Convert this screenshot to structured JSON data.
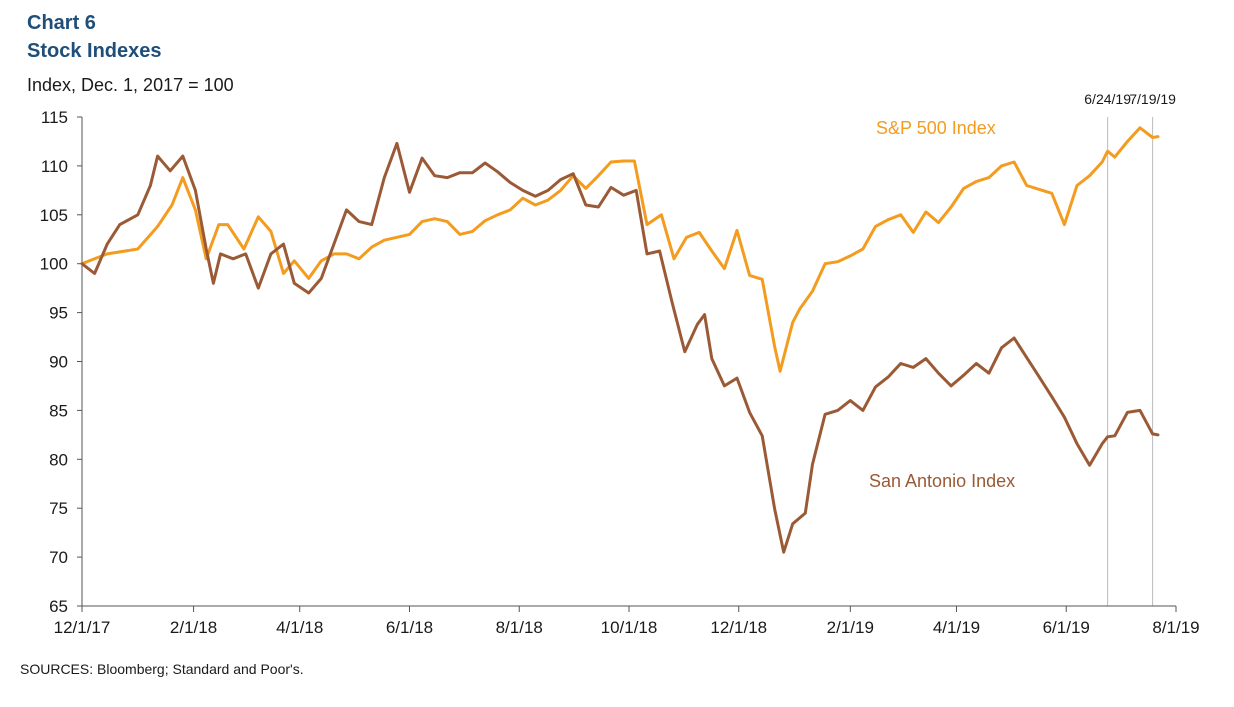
{
  "header": {
    "title": "Chart 6",
    "subtitle": "Stock Indexes",
    "units": "Index, Dec. 1, 2017 = 100"
  },
  "footer": {
    "source": "SOURCES: Bloomberg; Standard and Poor's."
  },
  "colors": {
    "sp500": "#f39c1f",
    "san_antonio": "#9b5a36",
    "axis": "#555555",
    "marker_line": "#bbbbbb"
  },
  "chart_data": {
    "type": "line",
    "x_axis": {
      "type": "date",
      "range": [
        "2017-12-01",
        "2019-08-01"
      ],
      "ticks": [
        "2017-12-01",
        "2018-02-01",
        "2018-04-01",
        "2018-06-01",
        "2018-08-01",
        "2018-10-01",
        "2018-12-01",
        "2019-02-01",
        "2019-04-01",
        "2019-06-01",
        "2019-08-01"
      ],
      "tick_labels": [
        "12/1/17",
        "2/1/18",
        "4/1/18",
        "6/1/18",
        "8/1/18",
        "10/1/18",
        "12/1/18",
        "2/1/19",
        "4/1/19",
        "6/1/19",
        "8/1/19"
      ]
    },
    "y_axis": {
      "range": [
        65,
        115
      ],
      "ticks": [
        65,
        70,
        75,
        80,
        85,
        90,
        95,
        100,
        105,
        110,
        115
      ]
    },
    "grid": false,
    "reference_lines": [
      {
        "date": "2019-06-24",
        "label": "6/24/19"
      },
      {
        "date": "2019-07-19",
        "label": "7/19/19"
      }
    ],
    "series": [
      {
        "name": "S&P 500 Index",
        "color": "#f39c1f",
        "points": [
          [
            "2017-12-01",
            100
          ],
          [
            "2017-12-15",
            101
          ],
          [
            "2018-01-01",
            101.5
          ],
          [
            "2018-01-12",
            103.8
          ],
          [
            "2018-01-20",
            106
          ],
          [
            "2018-01-26",
            108.8
          ],
          [
            "2018-02-02",
            105.5
          ],
          [
            "2018-02-08",
            100.5
          ],
          [
            "2018-02-15",
            104
          ],
          [
            "2018-02-20",
            104
          ],
          [
            "2018-03-01",
            101.5
          ],
          [
            "2018-03-09",
            104.8
          ],
          [
            "2018-03-16",
            103.3
          ],
          [
            "2018-03-23",
            99
          ],
          [
            "2018-03-29",
            100.3
          ],
          [
            "2018-04-06",
            98.5
          ],
          [
            "2018-04-13",
            100.3
          ],
          [
            "2018-04-20",
            101
          ],
          [
            "2018-04-27",
            101
          ],
          [
            "2018-05-04",
            100.5
          ],
          [
            "2018-05-11",
            101.7
          ],
          [
            "2018-05-18",
            102.4
          ],
          [
            "2018-05-25",
            102.7
          ],
          [
            "2018-06-01",
            103
          ],
          [
            "2018-06-08",
            104.3
          ],
          [
            "2018-06-15",
            104.6
          ],
          [
            "2018-06-22",
            104.3
          ],
          [
            "2018-06-29",
            103
          ],
          [
            "2018-07-06",
            103.3
          ],
          [
            "2018-07-13",
            104.4
          ],
          [
            "2018-07-20",
            105
          ],
          [
            "2018-07-27",
            105.5
          ],
          [
            "2018-08-03",
            106.7
          ],
          [
            "2018-08-10",
            106
          ],
          [
            "2018-08-17",
            106.5
          ],
          [
            "2018-08-24",
            107.5
          ],
          [
            "2018-08-31",
            109
          ],
          [
            "2018-09-07",
            107.7
          ],
          [
            "2018-09-14",
            109
          ],
          [
            "2018-09-21",
            110.4
          ],
          [
            "2018-09-28",
            110.5
          ],
          [
            "2018-10-04",
            110.5
          ],
          [
            "2018-10-11",
            104
          ],
          [
            "2018-10-19",
            105
          ],
          [
            "2018-10-26",
            100.5
          ],
          [
            "2018-11-02",
            102.7
          ],
          [
            "2018-11-09",
            103.2
          ],
          [
            "2018-11-16",
            101.3
          ],
          [
            "2018-11-23",
            99.5
          ],
          [
            "2018-11-30",
            103.4
          ],
          [
            "2018-12-07",
            98.8
          ],
          [
            "2018-12-14",
            98.4
          ],
          [
            "2018-12-21",
            91.5
          ],
          [
            "2018-12-24",
            89
          ],
          [
            "2018-12-31",
            94
          ],
          [
            "2019-01-04",
            95.4
          ],
          [
            "2019-01-11",
            97.2
          ],
          [
            "2019-01-18",
            100
          ],
          [
            "2019-01-25",
            100.2
          ],
          [
            "2019-02-01",
            100.8
          ],
          [
            "2019-02-08",
            101.5
          ],
          [
            "2019-02-15",
            103.8
          ],
          [
            "2019-02-22",
            104.5
          ],
          [
            "2019-03-01",
            105
          ],
          [
            "2019-03-08",
            103.2
          ],
          [
            "2019-03-15",
            105.3
          ],
          [
            "2019-03-22",
            104.2
          ],
          [
            "2019-03-29",
            105.8
          ],
          [
            "2019-04-05",
            107.7
          ],
          [
            "2019-04-12",
            108.4
          ],
          [
            "2019-04-19",
            108.8
          ],
          [
            "2019-04-26",
            110
          ],
          [
            "2019-05-03",
            110.4
          ],
          [
            "2019-05-10",
            108
          ],
          [
            "2019-05-17",
            107.6
          ],
          [
            "2019-05-24",
            107.2
          ],
          [
            "2019-05-31",
            104
          ],
          [
            "2019-06-07",
            108
          ],
          [
            "2019-06-14",
            109
          ],
          [
            "2019-06-21",
            110.4
          ],
          [
            "2019-06-24",
            111.5
          ],
          [
            "2019-06-28",
            110.9
          ],
          [
            "2019-07-05",
            112.5
          ],
          [
            "2019-07-12",
            113.9
          ],
          [
            "2019-07-19",
            112.9
          ],
          [
            "2019-07-22",
            113
          ]
        ]
      },
      {
        "name": "San Antonio Index",
        "color": "#9b5a36",
        "points": [
          [
            "2017-12-01",
            100
          ],
          [
            "2017-12-08",
            99
          ],
          [
            "2017-12-15",
            102
          ],
          [
            "2017-12-22",
            104
          ],
          [
            "2018-01-01",
            105
          ],
          [
            "2018-01-08",
            108
          ],
          [
            "2018-01-12",
            111
          ],
          [
            "2018-01-19",
            109.5
          ],
          [
            "2018-01-26",
            111
          ],
          [
            "2018-02-02",
            107.5
          ],
          [
            "2018-02-08",
            101.5
          ],
          [
            "2018-02-12",
            98
          ],
          [
            "2018-02-16",
            101
          ],
          [
            "2018-02-23",
            100.5
          ],
          [
            "2018-03-02",
            101
          ],
          [
            "2018-03-09",
            97.5
          ],
          [
            "2018-03-16",
            101
          ],
          [
            "2018-03-23",
            102
          ],
          [
            "2018-03-29",
            98
          ],
          [
            "2018-04-06",
            97
          ],
          [
            "2018-04-13",
            98.5
          ],
          [
            "2018-04-20",
            102
          ],
          [
            "2018-04-27",
            105.5
          ],
          [
            "2018-05-04",
            104.3
          ],
          [
            "2018-05-11",
            104
          ],
          [
            "2018-05-18",
            108.8
          ],
          [
            "2018-05-25",
            112.3
          ],
          [
            "2018-06-01",
            107.3
          ],
          [
            "2018-06-08",
            110.8
          ],
          [
            "2018-06-15",
            109
          ],
          [
            "2018-06-22",
            108.8
          ],
          [
            "2018-06-29",
            109.3
          ],
          [
            "2018-07-06",
            109.3
          ],
          [
            "2018-07-13",
            110.3
          ],
          [
            "2018-07-20",
            109.4
          ],
          [
            "2018-07-27",
            108.3
          ],
          [
            "2018-08-03",
            107.5
          ],
          [
            "2018-08-10",
            106.9
          ],
          [
            "2018-08-17",
            107.5
          ],
          [
            "2018-08-24",
            108.6
          ],
          [
            "2018-08-31",
            109.2
          ],
          [
            "2018-09-07",
            106
          ],
          [
            "2018-09-14",
            105.8
          ],
          [
            "2018-09-21",
            107.8
          ],
          [
            "2018-09-28",
            107
          ],
          [
            "2018-10-05",
            107.5
          ],
          [
            "2018-10-11",
            101
          ],
          [
            "2018-10-18",
            101.3
          ],
          [
            "2018-10-25",
            96
          ],
          [
            "2018-11-01",
            91
          ],
          [
            "2018-11-08",
            93.8
          ],
          [
            "2018-11-12",
            94.8
          ],
          [
            "2018-11-16",
            90.3
          ],
          [
            "2018-11-23",
            87.5
          ],
          [
            "2018-11-30",
            88.3
          ],
          [
            "2018-12-07",
            84.8
          ],
          [
            "2018-12-14",
            82.4
          ],
          [
            "2018-12-21",
            74.9
          ],
          [
            "2018-12-26",
            70.5
          ],
          [
            "2018-12-31",
            73.4
          ],
          [
            "2019-01-07",
            74.5
          ],
          [
            "2019-01-11",
            79.5
          ],
          [
            "2019-01-18",
            84.6
          ],
          [
            "2019-01-25",
            85
          ],
          [
            "2019-02-01",
            86
          ],
          [
            "2019-02-08",
            85
          ],
          [
            "2019-02-15",
            87.4
          ],
          [
            "2019-02-22",
            88.4
          ],
          [
            "2019-03-01",
            89.8
          ],
          [
            "2019-03-08",
            89.4
          ],
          [
            "2019-03-15",
            90.3
          ],
          [
            "2019-03-22",
            88.8
          ],
          [
            "2019-03-29",
            87.5
          ],
          [
            "2019-04-05",
            88.6
          ],
          [
            "2019-04-12",
            89.8
          ],
          [
            "2019-04-19",
            88.8
          ],
          [
            "2019-04-26",
            91.4
          ],
          [
            "2019-05-03",
            92.4
          ],
          [
            "2019-05-10",
            90.4
          ],
          [
            "2019-05-17",
            88.4
          ],
          [
            "2019-05-24",
            86.4
          ],
          [
            "2019-05-31",
            84.3
          ],
          [
            "2019-06-07",
            81.6
          ],
          [
            "2019-06-14",
            79.4
          ],
          [
            "2019-06-21",
            81.6
          ],
          [
            "2019-06-24",
            82.3
          ],
          [
            "2019-06-28",
            82.4
          ],
          [
            "2019-07-05",
            84.8
          ],
          [
            "2019-07-12",
            85
          ],
          [
            "2019-07-19",
            82.6
          ],
          [
            "2019-07-22",
            82.5
          ]
        ]
      }
    ]
  }
}
